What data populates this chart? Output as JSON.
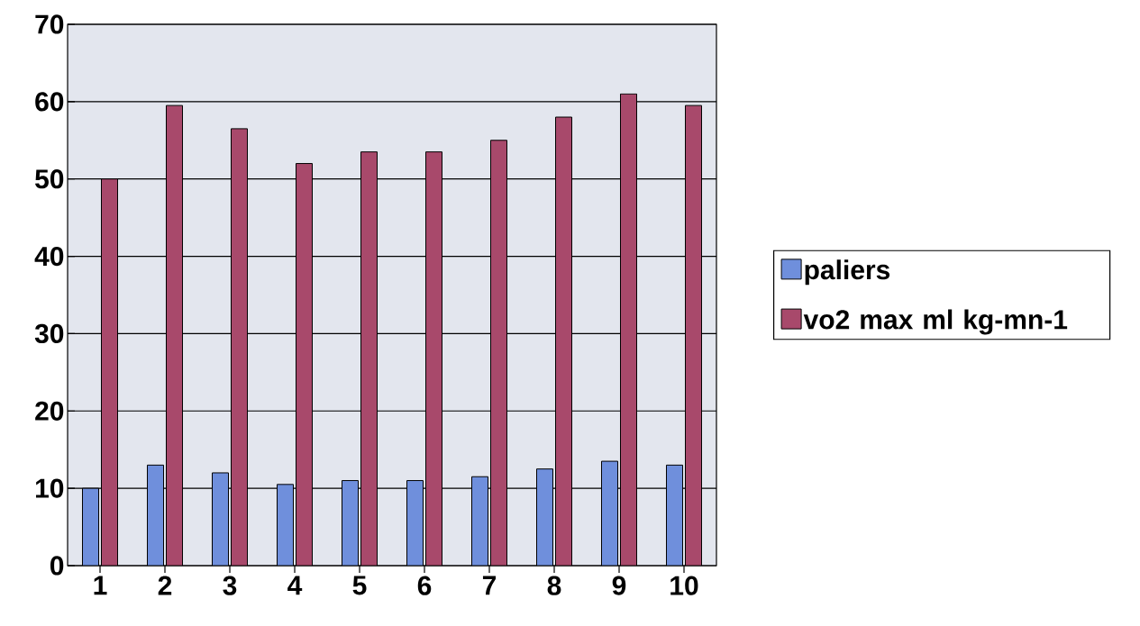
{
  "chart_data": {
    "type": "bar",
    "categories": [
      "1",
      "2",
      "3",
      "4",
      "5",
      "6",
      "7",
      "8",
      "9",
      "10"
    ],
    "series": [
      {
        "name": "paliers",
        "color": "#6f8fdc",
        "values": [
          10,
          13,
          12,
          10.5,
          11,
          11,
          11.5,
          12.5,
          13.5,
          13
        ]
      },
      {
        "name": "vo2 max ml kg-mn-1",
        "color": "#a8496b",
        "values": [
          50,
          59.5,
          56.5,
          52,
          53.5,
          53.5,
          55,
          58,
          61,
          59.5
        ]
      }
    ],
    "ylim": [
      0,
      70
    ],
    "yticks": [
      0,
      10,
      20,
      30,
      40,
      50,
      60,
      70
    ],
    "grid": "y",
    "legend": "right"
  }
}
